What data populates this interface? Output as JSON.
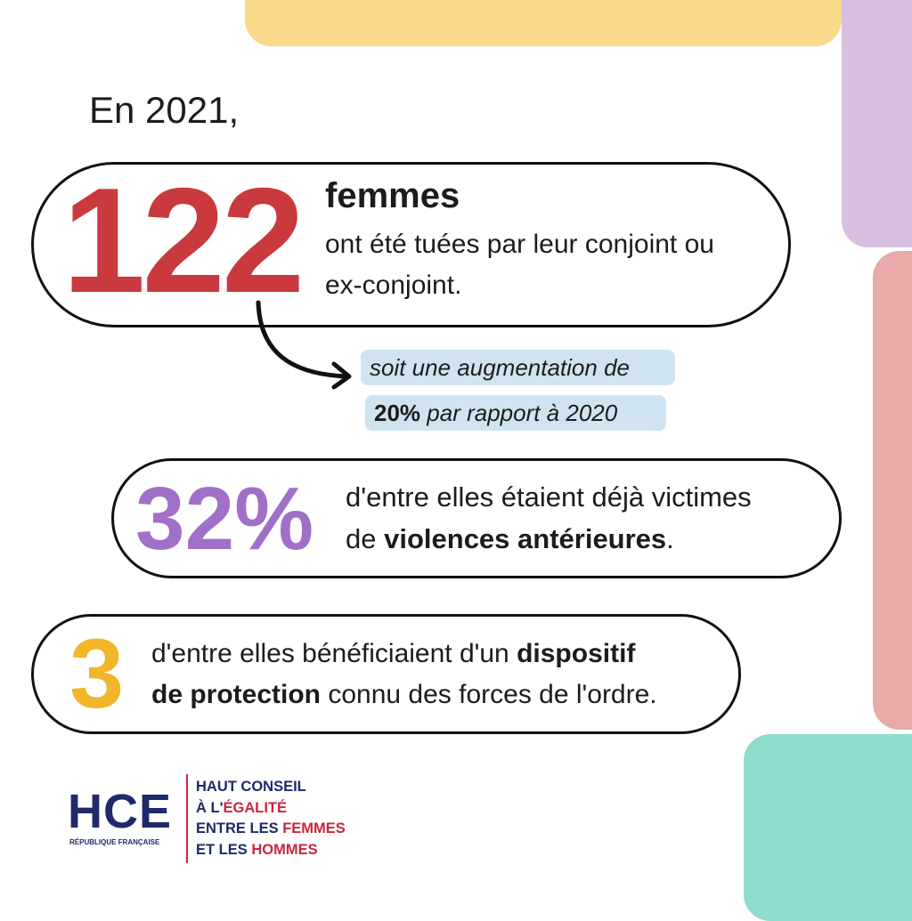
{
  "colors": {
    "yellow": "#fbd98a",
    "purple": "#d6bfe0",
    "pink": "#e8a9a9",
    "teal": "#8fdccf",
    "red": "#c9393d",
    "violet": "#a070c8",
    "gold": "#f2b62a",
    "blue_box": "#cfe4f0",
    "navy": "#1f2a6b"
  },
  "intro": "En 2021,",
  "stat1": {
    "number": "122",
    "title": "femmes",
    "line1": "ont été tuées par leur conjoint ou",
    "line2": "ex-conjoint."
  },
  "increase": {
    "line1": "soit une augmentation de",
    "bold": "20%",
    "rest": " par rapport à 2020"
  },
  "stat2": {
    "number": "32%",
    "line1": "d'entre elles étaient déjà victimes",
    "line2_pre": "de ",
    "line2_bold": "violences antérieures",
    "line2_post": "."
  },
  "stat3": {
    "number": "3",
    "line1_pre": "d'entre elles bénéficiaient d'un ",
    "line1_bold": "dispositif",
    "line2_bold": "de protection",
    "line2_post": " connu des forces de l'ordre."
  },
  "logo": {
    "acronym": "HCE",
    "sub": "RÉPUBLIQUE FRANÇAISE",
    "l1": "HAUT CONSEIL",
    "l2a": "À L'",
    "l2b": "ÉGALITÉ",
    "l3a": "ENTRE LES ",
    "l3b": "FEMMES",
    "l4a": "ET LES ",
    "l4b": "HOMMES"
  }
}
